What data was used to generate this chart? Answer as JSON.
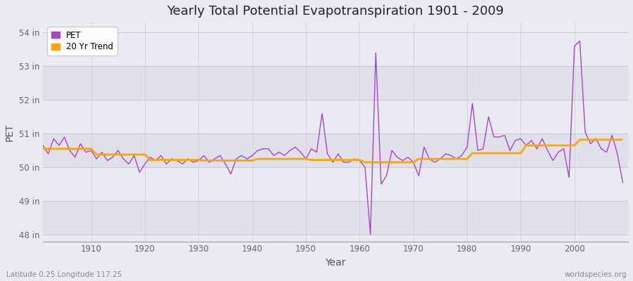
{
  "title": "Yearly Total Potential Evapotranspiration 1901 - 2009",
  "xlabel": "Year",
  "ylabel": "PET",
  "subtitle_left": "Latitude 0.25 Longitude 117.25",
  "subtitle_right": "worldspecies.org",
  "pet_color": "#AA44CC",
  "trend_color": "#FFA500",
  "bg_color": "#EAEAF0",
  "plot_bg_color": "#EBEBF2",
  "ylim": [
    47.8,
    54.3
  ],
  "yticks": [
    48,
    49,
    50,
    51,
    52,
    53,
    54
  ],
  "ytick_labels": [
    "48 in",
    "49 in",
    "50 in",
    "51 in",
    "52 in",
    "53 in",
    "54 in"
  ],
  "band_colors": [
    "#E0E0EA",
    "#EAEAF2"
  ],
  "years": [
    1901,
    1902,
    1903,
    1904,
    1905,
    1906,
    1907,
    1908,
    1909,
    1910,
    1911,
    1912,
    1913,
    1914,
    1915,
    1916,
    1917,
    1918,
    1919,
    1920,
    1921,
    1922,
    1923,
    1924,
    1925,
    1926,
    1927,
    1928,
    1929,
    1930,
    1931,
    1932,
    1933,
    1934,
    1935,
    1936,
    1937,
    1938,
    1939,
    1940,
    1941,
    1942,
    1943,
    1944,
    1945,
    1946,
    1947,
    1948,
    1949,
    1950,
    1951,
    1952,
    1953,
    1954,
    1955,
    1956,
    1957,
    1958,
    1959,
    1960,
    1961,
    1962,
    1963,
    1964,
    1965,
    1966,
    1967,
    1968,
    1969,
    1970,
    1971,
    1972,
    1973,
    1974,
    1975,
    1976,
    1977,
    1978,
    1979,
    1980,
    1981,
    1982,
    1983,
    1984,
    1985,
    1986,
    1987,
    1988,
    1989,
    1990,
    1991,
    1992,
    1993,
    1994,
    1995,
    1996,
    1997,
    1998,
    1999,
    2000,
    2001,
    2002,
    2003,
    2004,
    2005,
    2006,
    2007,
    2008,
    2009
  ],
  "pet_values": [
    50.65,
    50.4,
    50.85,
    50.65,
    50.9,
    50.5,
    50.3,
    50.7,
    50.45,
    50.5,
    50.25,
    50.45,
    50.2,
    50.3,
    50.5,
    50.25,
    50.1,
    50.35,
    49.85,
    50.1,
    50.3,
    50.2,
    50.35,
    50.1,
    50.25,
    50.2,
    50.1,
    50.25,
    50.15,
    50.2,
    50.35,
    50.15,
    50.25,
    50.35,
    50.1,
    49.8,
    50.25,
    50.35,
    50.25,
    50.35,
    50.5,
    50.55,
    50.55,
    50.35,
    50.45,
    50.35,
    50.5,
    50.6,
    50.45,
    50.25,
    50.55,
    50.45,
    51.6,
    50.4,
    50.15,
    50.4,
    50.15,
    50.15,
    50.25,
    50.2,
    50.0,
    48.0,
    53.4,
    49.5,
    49.75,
    50.5,
    50.3,
    50.2,
    50.3,
    50.15,
    49.75,
    50.6,
    50.25,
    50.15,
    50.25,
    50.4,
    50.35,
    50.25,
    50.35,
    50.6,
    51.9,
    50.5,
    50.55,
    51.5,
    50.9,
    50.9,
    50.95,
    50.5,
    50.8,
    50.85,
    50.65,
    50.8,
    50.55,
    50.85,
    50.5,
    50.2,
    50.45,
    50.55,
    49.7,
    53.6,
    53.75,
    51.05,
    50.7,
    50.85,
    50.55,
    50.45,
    50.95,
    50.4,
    49.55
  ],
  "trend_values": [
    50.55,
    50.55,
    50.55,
    50.55,
    50.55,
    50.55,
    50.55,
    50.55,
    50.55,
    50.55,
    50.38,
    50.38,
    50.38,
    50.38,
    50.38,
    50.38,
    50.38,
    50.38,
    50.38,
    50.38,
    50.22,
    50.22,
    50.22,
    50.22,
    50.22,
    50.22,
    50.22,
    50.22,
    50.22,
    50.22,
    50.2,
    50.2,
    50.2,
    50.2,
    50.2,
    50.2,
    50.2,
    50.2,
    50.2,
    50.2,
    50.25,
    50.25,
    50.25,
    50.25,
    50.25,
    50.25,
    50.25,
    50.25,
    50.25,
    50.25,
    50.22,
    50.22,
    50.22,
    50.22,
    50.22,
    50.22,
    50.22,
    50.22,
    50.22,
    50.22,
    50.15,
    50.15,
    50.15,
    50.15,
    50.15,
    50.15,
    50.15,
    50.15,
    50.15,
    50.15,
    50.25,
    50.25,
    50.25,
    50.25,
    50.25,
    50.25,
    50.25,
    50.25,
    50.25,
    50.25,
    50.42,
    50.42,
    50.42,
    50.42,
    50.42,
    50.42,
    50.42,
    50.42,
    50.42,
    50.42,
    50.65,
    50.65,
    50.65,
    50.65,
    50.65,
    50.65,
    50.65,
    50.65,
    50.65,
    50.65,
    50.82,
    50.82,
    50.82,
    50.82,
    50.82,
    50.82,
    50.82,
    50.82,
    50.82
  ]
}
